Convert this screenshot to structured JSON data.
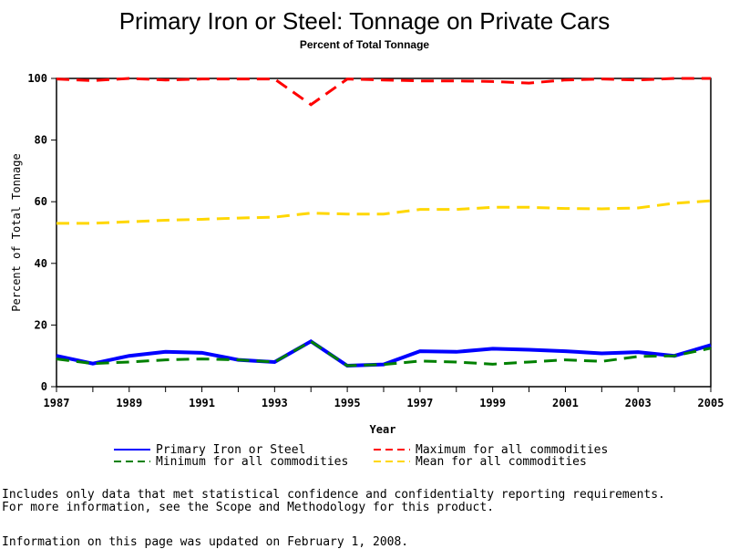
{
  "chart_data": {
    "type": "line",
    "title": "Primary Iron or Steel: Tonnage on Private Cars",
    "subtitle": "Percent of Total Tonnage",
    "xlabel": "Year",
    "ylabel": "Percent of Total Tonnage",
    "xlim": [
      1987,
      2005
    ],
    "ylim": [
      0,
      100
    ],
    "xticks": [
      1987,
      1989,
      1991,
      1993,
      1995,
      1997,
      1999,
      2001,
      2003,
      2005
    ],
    "yticks": [
      0,
      20,
      40,
      60,
      80,
      100
    ],
    "grid": false,
    "legend_placement": "bottom",
    "x": [
      1987,
      1988,
      1989,
      1990,
      1991,
      1992,
      1993,
      1994,
      1995,
      1996,
      1997,
      1998,
      1999,
      2000,
      2001,
      2002,
      2003,
      2004,
      2005
    ],
    "series": [
      {
        "name": "Mean for all commodities",
        "color": "#ffd700",
        "dash": true,
        "values": [
          53,
          53,
          53.5,
          54,
          54.3,
          54.7,
          55,
          56.3,
          56,
          56,
          57.5,
          57.5,
          58.2,
          58.2,
          57.8,
          57.7,
          58,
          59.5,
          60.3
        ]
      },
      {
        "name": "Maximum for all commodities",
        "color": "#ff0000",
        "dash": true,
        "values": [
          99.8,
          99.3,
          100,
          99.5,
          99.8,
          99.8,
          99.8,
          91.5,
          99.8,
          99.5,
          99.2,
          99.2,
          99,
          98.5,
          99.5,
          99.8,
          99.5,
          100,
          100
        ]
      },
      {
        "name": "Primary Iron or Steel",
        "color": "#0000ff",
        "dash": false,
        "values": [
          10,
          7.5,
          10,
          11.3,
          11,
          8.7,
          8,
          14.7,
          6.8,
          7.2,
          11.5,
          11.3,
          12.3,
          12,
          11.5,
          10.8,
          11.2,
          10,
          13.5
        ]
      },
      {
        "name": "Minimum for all commodities",
        "color": "#008000",
        "dash": true,
        "values": [
          9,
          7.5,
          8,
          8.7,
          9,
          8.7,
          8,
          14.7,
          6.8,
          7.2,
          8.3,
          8,
          7.3,
          8,
          8.7,
          8.2,
          9.8,
          10,
          12.5
        ]
      }
    ]
  },
  "notes": [
    "Includes only data that met statistical confidence and confidentialty reporting requirements.",
    "For more information, see the Scope and Methodology for this product.",
    "Information on this page was updated on February 1, 2008."
  ]
}
